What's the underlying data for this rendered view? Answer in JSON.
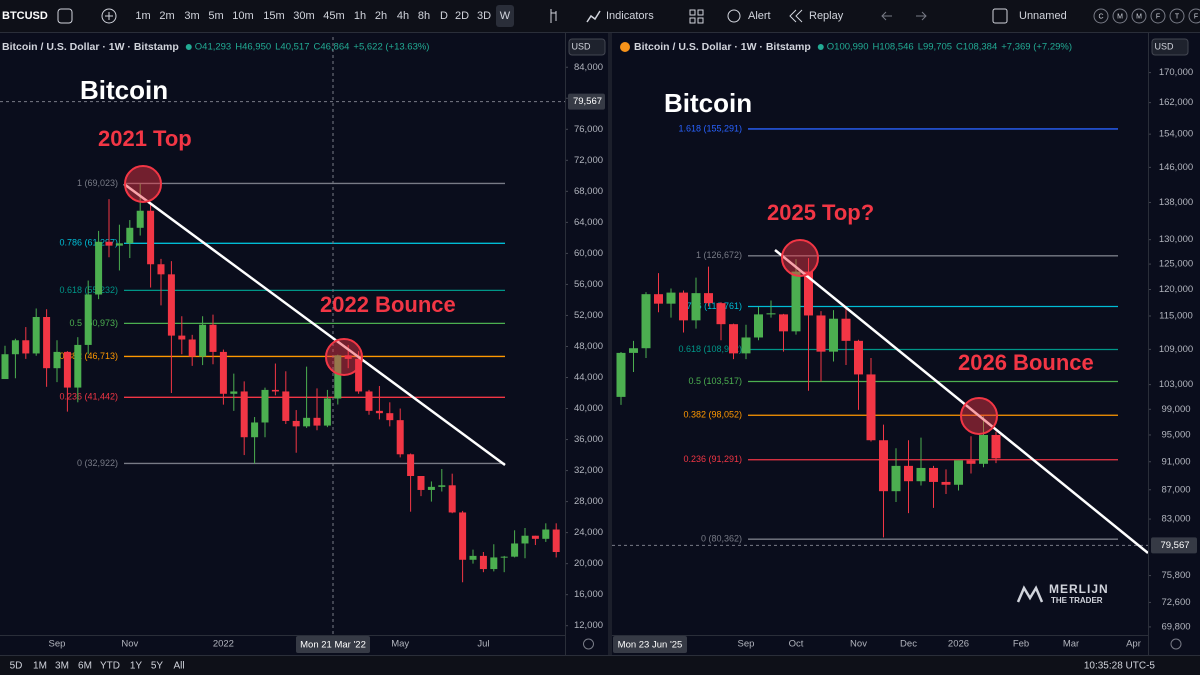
{
  "toolbar": {
    "symbol": "BTCUSD",
    "intervals": [
      "1m",
      "2m",
      "3m",
      "5m",
      "10m",
      "15m",
      "30m",
      "45m",
      "1h",
      "2h",
      "4h",
      "8h",
      "D",
      "2D",
      "3D",
      "W"
    ],
    "indicators": "Indicators",
    "alert": "Alert",
    "replay": "Replay",
    "layout_name": "Unnamed",
    "quick_buttons": [
      "C",
      "M",
      "M",
      "F",
      "T",
      "F"
    ]
  },
  "bottom_bar": {
    "ranges": [
      "5D",
      "1M",
      "3M",
      "6M",
      "YTD",
      "1Y",
      "5Y",
      "All"
    ],
    "clock": "10:35:28 UTC-5"
  },
  "watermark": [
    "MERLIJN",
    "THE TRADER"
  ],
  "chart_data": [
    {
      "type": "candlestick",
      "title": "Bitcoin",
      "currency": "USD",
      "log_scale": false,
      "legend_values": [
        "O41,293",
        "H46,950",
        "L40,517",
        "C46,864",
        "+5,622 (+13.63%)"
      ],
      "crosshair_label": "Mon 21 Mar '22",
      "categories": [
        null,
        null,
        null,
        null,
        null,
        "Sep",
        null,
        null,
        null,
        null,
        null,
        null,
        "Nov",
        null,
        null,
        null,
        null,
        null,
        null,
        null,
        null,
        "2022",
        null,
        null,
        null,
        null,
        null,
        null,
        null,
        null,
        null,
        null,
        null,
        null,
        null,
        null,
        null,
        null,
        "May",
        null,
        null,
        null,
        null,
        null,
        null,
        null,
        "Jul",
        null,
        null,
        null,
        null,
        null,
        null,
        null
      ],
      "series": [
        {
          "name": "Bitcoin / U.S. Dollar · 1W · Bitstamp",
          "up_color": "#4caf50",
          "down_color": "#f23645",
          "open": [
            43800,
            47000,
            48800,
            47100,
            51800,
            45200,
            47300,
            42700,
            48200,
            54700,
            61500,
            61000,
            61300,
            63300,
            65500,
            58600,
            57300,
            49400,
            48900,
            46700,
            50800,
            47300,
            41900,
            42200,
            36300,
            38200,
            42400,
            42200,
            38400,
            37700,
            38800,
            37800,
            41293,
            46864,
            46400,
            42200,
            39700,
            39400,
            38500,
            34100,
            31300,
            29500,
            29900,
            30100,
            26600,
            20500,
            21000,
            19300,
            20800,
            20900,
            22600,
            23600,
            23200,
            24400
          ],
          "high": [
            48100,
            49000,
            50500,
            52900,
            52800,
            48800,
            47400,
            49200,
            56500,
            62900,
            67000,
            63700,
            64300,
            69000,
            66300,
            59300,
            59000,
            51900,
            49500,
            51900,
            52100,
            47600,
            44500,
            43500,
            38900,
            42700,
            45800,
            44800,
            39800,
            45400,
            42600,
            42400,
            46950,
            48200,
            47400,
            42400,
            42900,
            40800,
            40000,
            34200,
            31300,
            30600,
            32200,
            31600,
            26800,
            21800,
            21500,
            22500,
            21000,
            24300,
            24600,
            23600,
            25200,
            25200
          ],
          "low": [
            43800,
            43900,
            46400,
            46800,
            42800,
            43400,
            39600,
            40800,
            47000,
            54100,
            59500,
            57800,
            59400,
            62300,
            55600,
            53300,
            42000,
            47000,
            45500,
            45600,
            45700,
            40500,
            39700,
            34000,
            32900,
            36300,
            41700,
            38000,
            34300,
            37500,
            37200,
            37600,
            40517,
            45200,
            41900,
            39200,
            38600,
            37700,
            33700,
            26700,
            28700,
            28000,
            29300,
            26500,
            17600,
            20000,
            18900,
            19000,
            18900,
            20800,
            20700,
            22400,
            22800,
            20800
          ],
          "close": [
            47000,
            48800,
            47100,
            51800,
            45200,
            47300,
            42700,
            48200,
            54700,
            61500,
            61000,
            61300,
            63300,
            65500,
            58600,
            57300,
            49400,
            48900,
            46700,
            50800,
            47300,
            41900,
            42200,
            36300,
            38200,
            42400,
            42200,
            38400,
            37700,
            38800,
            37800,
            41300,
            46864,
            46400,
            42200,
            39700,
            39400,
            38500,
            34100,
            31300,
            29500,
            29900,
            30100,
            26600,
            20500,
            21000,
            19300,
            20800,
            20900,
            22600,
            23600,
            23200,
            24400,
            21500
          ]
        }
      ],
      "ylim": [
        10800,
        87900
      ],
      "yticks": [
        {
          "value": 84000,
          "label": "84,000"
        },
        {
          "value": 80000,
          "label": "80,000"
        },
        {
          "value": 76000,
          "label": "76,000"
        },
        {
          "value": 72000,
          "label": "72,000"
        },
        {
          "value": 68000,
          "label": "68,000"
        },
        {
          "value": 64000,
          "label": "64,000"
        },
        {
          "value": 60000,
          "label": "60,000"
        },
        {
          "value": 56000,
          "label": "56,000"
        },
        {
          "value": 52000,
          "label": "52,000"
        },
        {
          "value": 48000,
          "label": "48,000"
        },
        {
          "value": 44000,
          "label": "44,000"
        },
        {
          "value": 40000,
          "label": "40,000"
        },
        {
          "value": 36000,
          "label": "36,000"
        },
        {
          "value": 32000,
          "label": "32,000"
        },
        {
          "value": 28000,
          "label": "28,000"
        },
        {
          "value": 24000,
          "label": "24,000"
        },
        {
          "value": 20000,
          "label": "20,000"
        },
        {
          "value": 16000,
          "label": "16,000"
        },
        {
          "value": 12000,
          "label": "12,000"
        }
      ],
      "price_label": {
        "value": 79567,
        "label": "79,567"
      },
      "fib_levels": [
        {
          "value": 69023,
          "label": "1 (69,023)",
          "color": "#787b86"
        },
        {
          "value": 61297,
          "label": "0.786 (61,297)",
          "color": "#00bcd4"
        },
        {
          "value": 55232,
          "label": "0.618 (55,232)",
          "color": "#009688"
        },
        {
          "value": 50973,
          "label": "0.5 (50,973)",
          "color": "#4caf50"
        },
        {
          "value": 46713,
          "label": "0.382 (46,713)",
          "color": "#ff9800"
        },
        {
          "value": 41442,
          "label": "0.236 (41,442)",
          "color": "#f23645"
        },
        {
          "value": 32922,
          "label": "0 (32,922)",
          "color": "#787b86"
        }
      ],
      "annotations": [
        "2021 Top",
        "2022 Bounce"
      ]
    },
    {
      "type": "candlestick",
      "title": "Bitcoin",
      "currency": "USD",
      "log_scale": true,
      "legend_values": [
        "O100,990",
        "H108,546",
        "L99,705",
        "C108,384",
        "+7,369 (+7.29%)"
      ],
      "crosshair_label": "Mon 23 Jun '25",
      "categories": [
        null,
        null,
        null,
        null,
        null,
        null,
        null,
        null,
        null,
        null,
        "Sep",
        null,
        null,
        null,
        "Oct",
        null,
        null,
        null,
        null,
        "Nov",
        null,
        null,
        null,
        "Dec",
        null,
        null,
        null,
        "2026",
        null,
        null,
        null,
        null,
        "Feb",
        null,
        null,
        null,
        "Mar",
        null,
        null,
        null,
        null,
        "Apr",
        null
      ],
      "series": [
        {
          "name": "Bitcoin / U.S. Dollar · 1W · Bitstamp",
          "up_color": "#4caf50",
          "down_color": "#f23645",
          "open": [
            100990,
            108384,
            109200,
            119100,
            117300,
            119400,
            114200,
            119300,
            117400,
            113500,
            108300,
            111100,
            115300,
            115300,
            112200,
            123500,
            115100,
            108600,
            114500,
            110500,
            104700,
            94200,
            86800,
            90400,
            88200,
            90100,
            88100,
            87700,
            91200,
            90700,
            95000,
            null,
            null,
            null,
            null,
            null,
            null,
            null,
            null,
            null,
            null,
            null,
            null
          ],
          "high": [
            108546,
            110500,
            119500,
            123200,
            120200,
            119800,
            122300,
            124500,
            117600,
            113600,
            113400,
            116700,
            117900,
            115400,
            126000,
            126200,
            115900,
            116100,
            116400,
            110700,
            107500,
            96600,
            93000,
            94200,
            94600,
            90400,
            89900,
            91200,
            94800,
            97900,
            95500,
            null,
            null,
            null,
            null,
            null,
            null,
            null,
            null,
            null,
            null,
            null,
            null
          ],
          "low": [
            99705,
            105100,
            107500,
            115700,
            114700,
            112000,
            112700,
            116800,
            110600,
            107300,
            107300,
            110600,
            114700,
            108600,
            111600,
            102000,
            103500,
            106900,
            106300,
            98900,
            94000,
            80600,
            85300,
            83800,
            87600,
            84500,
            86400,
            86900,
            89300,
            90200,
            90800,
            null,
            null,
            null,
            null,
            null,
            null,
            null,
            null,
            null,
            null,
            null,
            null
          ],
          "close": [
            108384,
            109200,
            119100,
            117300,
            119400,
            114200,
            119300,
            117400,
            113500,
            108300,
            111100,
            115300,
            115500,
            112200,
            123500,
            115100,
            108600,
            114500,
            110500,
            104700,
            94200,
            86800,
            90400,
            88200,
            90100,
            88100,
            87700,
            91200,
            90700,
            95000,
            91500,
            null,
            null,
            null,
            null,
            null,
            null,
            null,
            null,
            null,
            null,
            null,
            null
          ]
        }
      ],
      "ylim": [
        68900,
        180000
      ],
      "yticks": [
        {
          "value": 170000,
          "label": "170,000"
        },
        {
          "value": 162000,
          "label": "162,000"
        },
        {
          "value": 154000,
          "label": "154,000"
        },
        {
          "value": 146000,
          "label": "146,000"
        },
        {
          "value": 138000,
          "label": "138,000"
        },
        {
          "value": 130000,
          "label": "130,000"
        },
        {
          "value": 125000,
          "label": "125,000"
        },
        {
          "value": 120000,
          "label": "120,000"
        },
        {
          "value": 115000,
          "label": "115,000"
        },
        {
          "value": 109000,
          "label": "109,000"
        },
        {
          "value": 103000,
          "label": "103,000"
        },
        {
          "value": 99000,
          "label": "99,000"
        },
        {
          "value": 95000,
          "label": "95,000"
        },
        {
          "value": 91000,
          "label": "91,000"
        },
        {
          "value": 87000,
          "label": "87,000"
        },
        {
          "value": 83000,
          "label": "83,000"
        },
        {
          "value": 75800,
          "label": "75,800"
        },
        {
          "value": 72600,
          "label": "72,600"
        },
        {
          "value": 69800,
          "label": "69,800"
        }
      ],
      "price_label": {
        "value": 79567,
        "label": "79,567"
      },
      "fib_levels": [
        {
          "value": 155291,
          "label": "1.618 (155,291)",
          "color": "#2962ff"
        },
        {
          "value": 126672,
          "label": "1 (126,672)",
          "color": "#787b86"
        },
        {
          "value": 116761,
          "label": "0.786 (116,761)",
          "color": "#00bcd4"
        },
        {
          "value": 108982,
          "label": "0.618 (108,982)",
          "color": "#009688"
        },
        {
          "value": 103517,
          "label": "0.5 (103,517)",
          "color": "#4caf50"
        },
        {
          "value": 98052,
          "label": "0.382 (98,052)",
          "color": "#ff9800"
        },
        {
          "value": 91291,
          "label": "0.236 (91,291)",
          "color": "#f23645"
        },
        {
          "value": 80362,
          "label": "0 (80,362)",
          "color": "#787b86"
        }
      ],
      "annotations": [
        "2025 Top?",
        "2026 Bounce"
      ]
    }
  ]
}
